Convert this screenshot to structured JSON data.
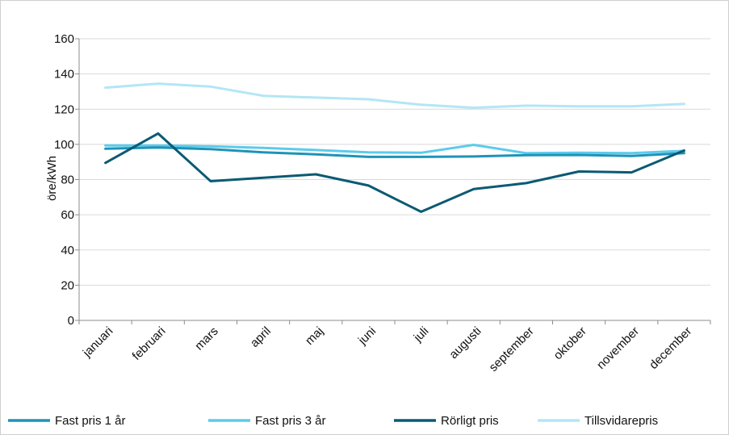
{
  "chart_data": {
    "type": "line",
    "title": "",
    "xlabel": "",
    "ylabel": "öre/kWh",
    "ylim": [
      0,
      160
    ],
    "yticks": [
      0,
      20,
      40,
      60,
      80,
      100,
      120,
      140,
      160
    ],
    "grid": "horizontal",
    "legend_position": "bottom",
    "categories": [
      "januari",
      "februari",
      "mars",
      "april",
      "maj",
      "juni",
      "juli",
      "augusti",
      "september",
      "oktober",
      "november",
      "december"
    ],
    "series": [
      {
        "name": "Fast pris 1 år",
        "color": "#1f93b8",
        "values": [
          97.5,
          98.2,
          97.3,
          95.5,
          94.3,
          92.9,
          92.9,
          93.1,
          93.9,
          94.0,
          93.4,
          95.0
        ]
      },
      {
        "name": "Fast pris 3 år",
        "color": "#5bcbec",
        "values": [
          99.4,
          99.3,
          98.9,
          98.0,
          96.8,
          95.5,
          95.2,
          99.7,
          95.0,
          95.2,
          95.0,
          96.3
        ]
      },
      {
        "name": "Rörligt pris",
        "color": "#0b5a73",
        "values": [
          89.5,
          106.2,
          79.1,
          81.0,
          83.0,
          76.6,
          61.7,
          74.6,
          78.0,
          84.6,
          84.1,
          96.5
        ]
      },
      {
        "name": "Tillsvidarepris",
        "color": "#b3e6f5",
        "values": [
          132.2,
          134.5,
          132.8,
          127.6,
          126.6,
          125.6,
          122.5,
          120.8,
          122.0,
          121.6,
          121.6,
          123.0
        ]
      }
    ]
  }
}
